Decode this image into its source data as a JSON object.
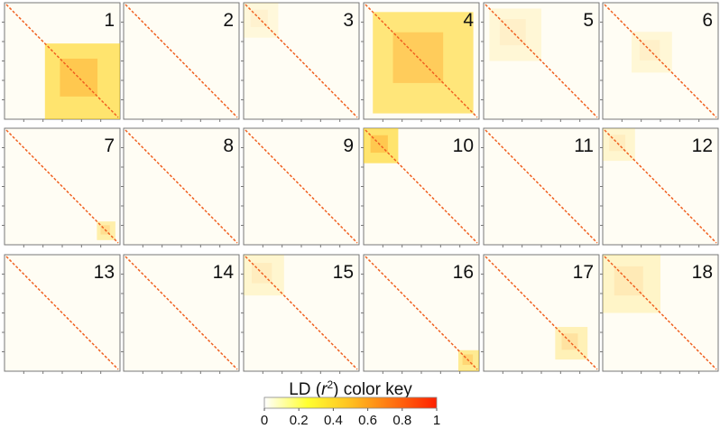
{
  "panels": [
    "1",
    "2",
    "3",
    "4",
    "5",
    "6",
    "7",
    "8",
    "9",
    "10",
    "11",
    "12",
    "13",
    "14",
    "15",
    "16",
    "17",
    "18"
  ],
  "chart_data": {
    "type": "colorbar",
    "title": [
      "LD (",
      "r",
      "2",
      ") color key"
    ],
    "xlim": [
      0,
      1
    ],
    "xticks": [
      0,
      0.2,
      0.4,
      0.6,
      0.8,
      1
    ],
    "colors": [
      "#ffffff",
      "#ffff30",
      "#ffc020",
      "#ff7010",
      "#ff2000"
    ]
  }
}
